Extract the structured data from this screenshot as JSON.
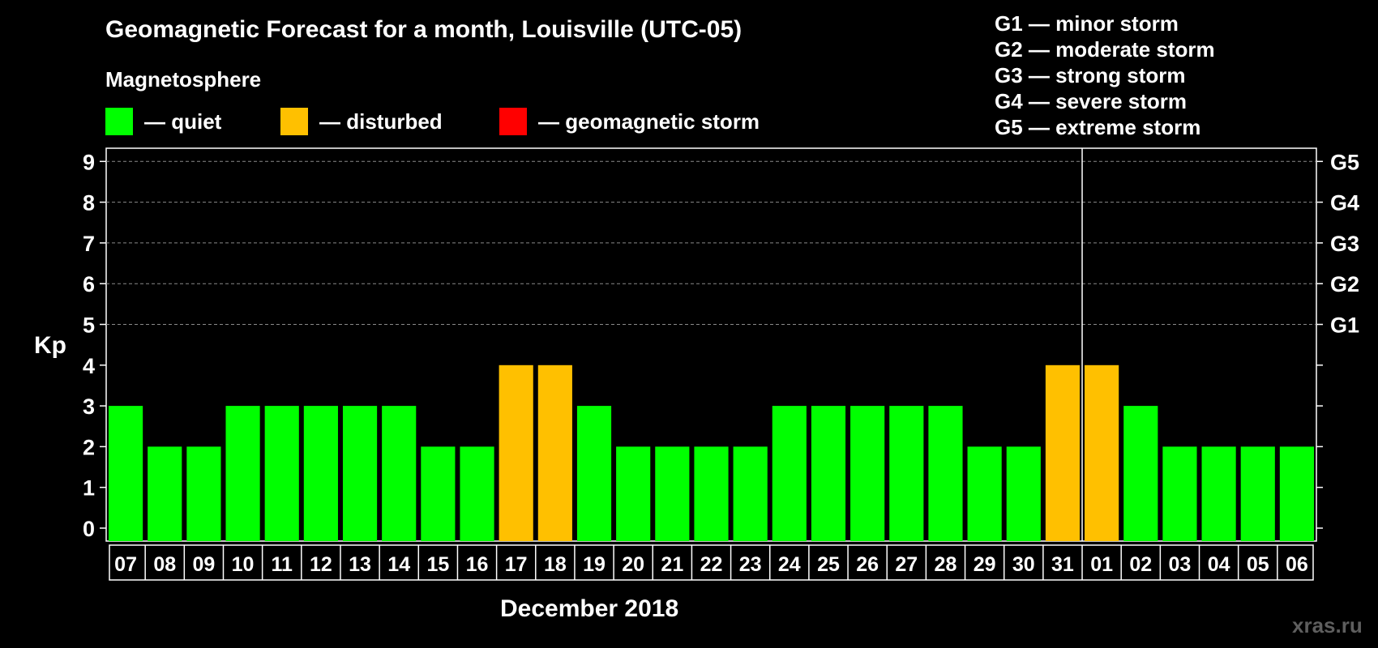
{
  "title": "Geomagnetic Forecast for a month, Louisville (UTC-05)",
  "legend": {
    "title": "Magnetosphere",
    "items": [
      {
        "label": "— quiet",
        "color": "#00ff00"
      },
      {
        "label": "— disturbed",
        "color": "#ffc000"
      },
      {
        "label": "— geomagnetic storm",
        "color": "#ff0000"
      }
    ]
  },
  "storm_scale": [
    "G1 — minor storm",
    "G2 — moderate storm",
    "G3 — strong storm",
    "G4 — severe storm",
    "G5 — extreme storm"
  ],
  "watermark": "xras.ru",
  "chart_data": {
    "type": "bar",
    "title": "Geomagnetic Forecast for a month, Louisville (UTC-05)",
    "xlabel": "December 2018",
    "ylabel": "Kp",
    "ylim": [
      0,
      9
    ],
    "yticks": [
      "0",
      "1",
      "2",
      "3",
      "4",
      "5",
      "6",
      "7",
      "8",
      "9"
    ],
    "right_axis_labels": [
      {
        "kp": 5,
        "label": "G1"
      },
      {
        "kp": 6,
        "label": "G2"
      },
      {
        "kp": 7,
        "label": "G3"
      },
      {
        "kp": 8,
        "label": "G4"
      },
      {
        "kp": 9,
        "label": "G5"
      }
    ],
    "categories": [
      "07",
      "08",
      "09",
      "10",
      "11",
      "12",
      "13",
      "14",
      "15",
      "16",
      "17",
      "18",
      "19",
      "20",
      "21",
      "22",
      "23",
      "24",
      "25",
      "26",
      "27",
      "28",
      "29",
      "30",
      "31",
      "01",
      "02",
      "03",
      "04",
      "05",
      "06"
    ],
    "values": [
      3,
      2,
      2,
      3,
      3,
      3,
      3,
      3,
      2,
      2,
      4,
      4,
      3,
      2,
      2,
      2,
      2,
      3,
      3,
      3,
      3,
      3,
      2,
      2,
      4,
      4,
      3,
      2,
      2,
      2,
      2
    ],
    "status": [
      "quiet",
      "quiet",
      "quiet",
      "quiet",
      "quiet",
      "quiet",
      "quiet",
      "quiet",
      "quiet",
      "quiet",
      "disturbed",
      "disturbed",
      "quiet",
      "quiet",
      "quiet",
      "quiet",
      "quiet",
      "quiet",
      "quiet",
      "quiet",
      "quiet",
      "quiet",
      "quiet",
      "quiet",
      "disturbed",
      "disturbed",
      "quiet",
      "quiet",
      "quiet",
      "quiet",
      "quiet"
    ],
    "month_boundary_after": "31",
    "grid": true,
    "colors": {
      "quiet": "#00ff00",
      "disturbed": "#ffc000",
      "storm": "#ff0000"
    }
  }
}
